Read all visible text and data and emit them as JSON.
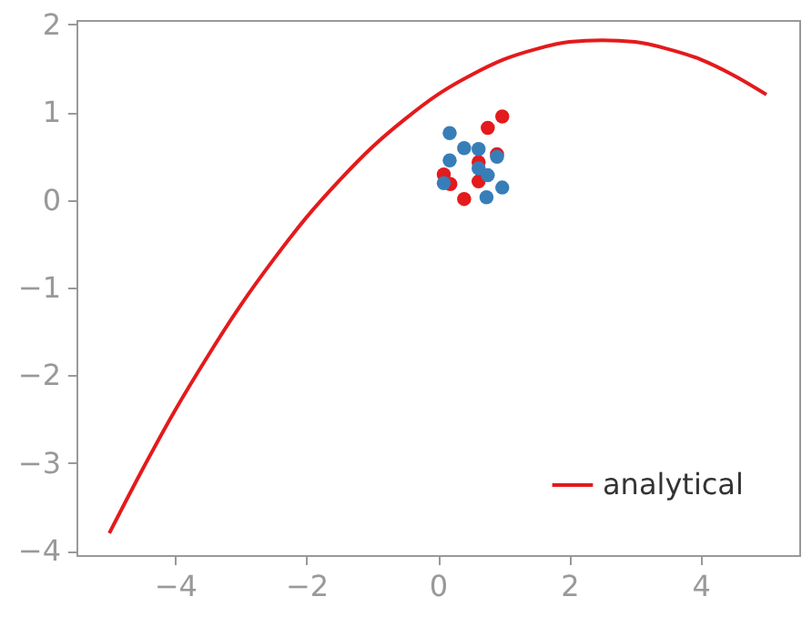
{
  "chart_data": {
    "type": "line",
    "xlim": [
      -5.5,
      5.5
    ],
    "ylim": [
      -4.05,
      2.05
    ],
    "xticks": [
      -4,
      -2,
      0,
      2,
      4
    ],
    "yticks": [
      -4,
      -3,
      -2,
      -1,
      0,
      1,
      2
    ],
    "grid": false,
    "legend": "bottom right",
    "series": [
      {
        "name": "analytical",
        "color": "#e41a1c",
        "x": [
          -5,
          -4.5,
          -4,
          -3.5,
          -3,
          -2.5,
          -2,
          -1.5,
          -1,
          -0.5,
          0,
          0.5,
          1,
          1.5,
          2,
          2.5,
          3,
          3.5,
          4,
          4.5,
          5
        ],
        "values": [
          -3.8,
          -3.08,
          -2.4,
          -1.78,
          -1.2,
          -0.68,
          -0.2,
          0.22,
          0.6,
          0.92,
          1.2,
          1.42,
          1.6,
          1.72,
          1.8,
          1.82,
          1.8,
          1.72,
          1.6,
          1.42,
          1.2
        ]
      },
      {
        "type": "scatter",
        "marker": "circle",
        "color": "#e41a1c",
        "x": [
          0.98,
          0.76,
          0.9,
          0.62,
          0.09,
          0.19,
          0.62,
          0.4
        ],
        "values": [
          0.95,
          0.82,
          0.52,
          0.43,
          0.29,
          0.18,
          0.21,
          0.01
        ]
      },
      {
        "type": "scatter",
        "marker": "circle",
        "color": "#377eb8",
        "x": [
          0.18,
          0.4,
          0.62,
          0.18,
          0.9,
          0.62,
          0.76,
          0.09,
          0.98,
          0.74
        ],
        "values": [
          0.76,
          0.59,
          0.58,
          0.45,
          0.49,
          0.36,
          0.28,
          0.19,
          0.14,
          0.03
        ]
      }
    ]
  }
}
